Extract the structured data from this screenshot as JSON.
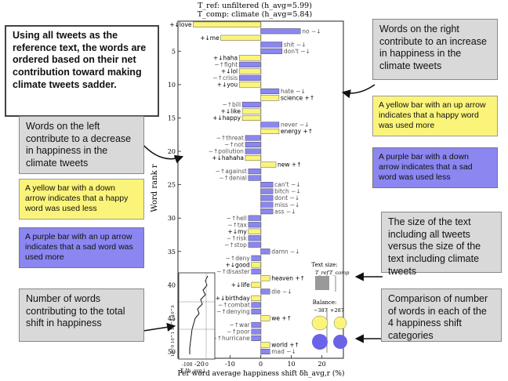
{
  "header": {
    "line1": "T_ref: unfiltered (h_avg=5.99)",
    "line2": "T_comp: climate (h_avg=5.84)"
  },
  "annotations": {
    "intro": "Using all tweets as the reference text, the words are ordered based on their net contribution toward making climate tweets sadder.",
    "right_words": "Words on the right contribute to an increase in happiness in the climate tweets",
    "left_words": "Words on the left contribute to a decrease in happiness in the climate tweets",
    "yellow_up": "A yellow bar with an up arrow indicates that a happy word was used more",
    "purple_down": "A purple bar with a down arrow indicates that a sad word was used less",
    "yellow_down": "A yellow bar with a down arrow indicates that a happy word was used less",
    "purple_up": "A purple bar with an up arrow indicates that a sad word was used more",
    "text_size": "The size of the text including all tweets versus the size of the text including climate tweets",
    "num_words": "Number of words contributing to the total shift in happiness",
    "comparison": "Comparison of number of words in each of the 4 happiness shift categories"
  },
  "inset_panels": {
    "text_size_title": "Text size:",
    "text_size_ref": "T_ref",
    "text_size_comp": "T_comp",
    "balance_title": "Balance:",
    "balance_left": "−387",
    "balance_right": "+287"
  },
  "colors": {
    "yellow": "#fbf47a",
    "purple": "#8b86f0",
    "gray_box": "#d9d9d9"
  },
  "chart_data": {
    "type": "bar",
    "xlabel": "Per word average happiness shift δh_avg,r (%)",
    "ylabel": "Word rank r",
    "xlim": [
      -27,
      27
    ],
    "ylim": [
      0.5,
      51
    ],
    "xticks": [
      -20,
      -10,
      0,
      10,
      20
    ],
    "yticks": [
      5,
      10,
      15,
      20,
      25,
      30,
      35,
      40,
      45,
      50
    ],
    "words": [
      {
        "rank": 1,
        "word": "+↓love",
        "value": -22,
        "color": "yellow"
      },
      {
        "rank": 2,
        "word": "no −↓",
        "value": 13,
        "color": "purple"
      },
      {
        "rank": 3,
        "word": "+↓me",
        "value": -13,
        "color": "yellow"
      },
      {
        "rank": 4,
        "word": "shit −↓",
        "value": 7,
        "color": "purple"
      },
      {
        "rank": 5,
        "word": "don't −↓",
        "value": 7,
        "color": "purple"
      },
      {
        "rank": 6,
        "word": "+↓haha",
        "value": -7,
        "color": "yellow"
      },
      {
        "rank": 7,
        "word": "−↑fight",
        "value": -7,
        "color": "purple"
      },
      {
        "rank": 8,
        "word": "+↓lol",
        "value": -7,
        "color": "yellow"
      },
      {
        "rank": 9,
        "word": "−↑crisis",
        "value": -7,
        "color": "purple"
      },
      {
        "rank": 10,
        "word": "+↓you",
        "value": -7,
        "color": "yellow"
      },
      {
        "rank": 11,
        "word": "hate −↓",
        "value": 6,
        "color": "purple"
      },
      {
        "rank": 12,
        "word": "science +↑",
        "value": 6,
        "color": "yellow"
      },
      {
        "rank": 13,
        "word": "−↑bill",
        "value": -6,
        "color": "purple"
      },
      {
        "rank": 14,
        "word": "+↓like",
        "value": -6,
        "color": "yellow"
      },
      {
        "rank": 15,
        "word": "+↓happy",
        "value": -6,
        "color": "yellow"
      },
      {
        "rank": 16,
        "word": "never −↓",
        "value": 6,
        "color": "purple"
      },
      {
        "rank": 17,
        "word": "energy +↑",
        "value": 6,
        "color": "yellow"
      },
      {
        "rank": 18,
        "word": "−↑threat",
        "value": -5,
        "color": "purple"
      },
      {
        "rank": 19,
        "word": "−↑not",
        "value": -5,
        "color": "purple"
      },
      {
        "rank": 20,
        "word": "−↑pollution",
        "value": -5,
        "color": "purple"
      },
      {
        "rank": 21,
        "word": "+↓hahaha",
        "value": -5,
        "color": "yellow"
      },
      {
        "rank": 22,
        "word": "new +↑",
        "value": 5,
        "color": "yellow"
      },
      {
        "rank": 23,
        "word": "−↑against",
        "value": -4,
        "color": "purple"
      },
      {
        "rank": 24,
        "word": "−↑denial",
        "value": -4,
        "color": "purple"
      },
      {
        "rank": 25,
        "word": "can't −↓",
        "value": 4,
        "color": "purple"
      },
      {
        "rank": 26,
        "word": "bitch −↓",
        "value": 4,
        "color": "purple"
      },
      {
        "rank": 27,
        "word": "dont −↓",
        "value": 4,
        "color": "purple"
      },
      {
        "rank": 28,
        "word": "miss −↓",
        "value": 4,
        "color": "purple"
      },
      {
        "rank": 29,
        "word": "ass −↓",
        "value": 4,
        "color": "purple"
      },
      {
        "rank": 30,
        "word": "−↑hell",
        "value": -4,
        "color": "purple"
      },
      {
        "rank": 31,
        "word": "−↑tax",
        "value": -4,
        "color": "purple"
      },
      {
        "rank": 32,
        "word": "+↓my",
        "value": -4,
        "color": "yellow"
      },
      {
        "rank": 33,
        "word": "−↑risk",
        "value": -4,
        "color": "purple"
      },
      {
        "rank": 34,
        "word": "−↑stop",
        "value": -4,
        "color": "purple"
      },
      {
        "rank": 35,
        "word": "damn −↓",
        "value": 3,
        "color": "purple"
      },
      {
        "rank": 36,
        "word": "−↑deny",
        "value": -3,
        "color": "purple"
      },
      {
        "rank": 37,
        "word": "+↓good",
        "value": -3,
        "color": "yellow"
      },
      {
        "rank": 38,
        "word": "−↑disaster",
        "value": -3,
        "color": "purple"
      },
      {
        "rank": 39,
        "word": "heaven +↑",
        "value": 3,
        "color": "yellow"
      },
      {
        "rank": 40,
        "word": "+↓life",
        "value": -3,
        "color": "yellow"
      },
      {
        "rank": 41,
        "word": "die −↓",
        "value": 3,
        "color": "purple"
      },
      {
        "rank": 42,
        "word": "+↓birthday",
        "value": -3,
        "color": "yellow"
      },
      {
        "rank": 43,
        "word": "−↑combat",
        "value": -3,
        "color": "purple"
      },
      {
        "rank": 44,
        "word": "−↑denying",
        "value": -3,
        "color": "purple"
      },
      {
        "rank": 45,
        "word": "we +↑",
        "value": 3,
        "color": "yellow"
      },
      {
        "rank": 46,
        "word": "−↑war",
        "value": -3,
        "color": "purple"
      },
      {
        "rank": 47,
        "word": "−↑poor",
        "value": -3,
        "color": "purple"
      },
      {
        "rank": 48,
        "word": "−↑hurricane",
        "value": -3,
        "color": "purple"
      },
      {
        "rank": 49,
        "word": "world +↑",
        "value": 3,
        "color": "yellow"
      },
      {
        "rank": 50,
        "word": "mad −↓",
        "value": 3,
        "color": "purple"
      }
    ],
    "inset": {
      "ylabel": "10^0 10^1 10^2 10^3",
      "xlabel": "Σ δh_avg,i",
      "xticks": [
        "-100",
        "0"
      ]
    }
  }
}
